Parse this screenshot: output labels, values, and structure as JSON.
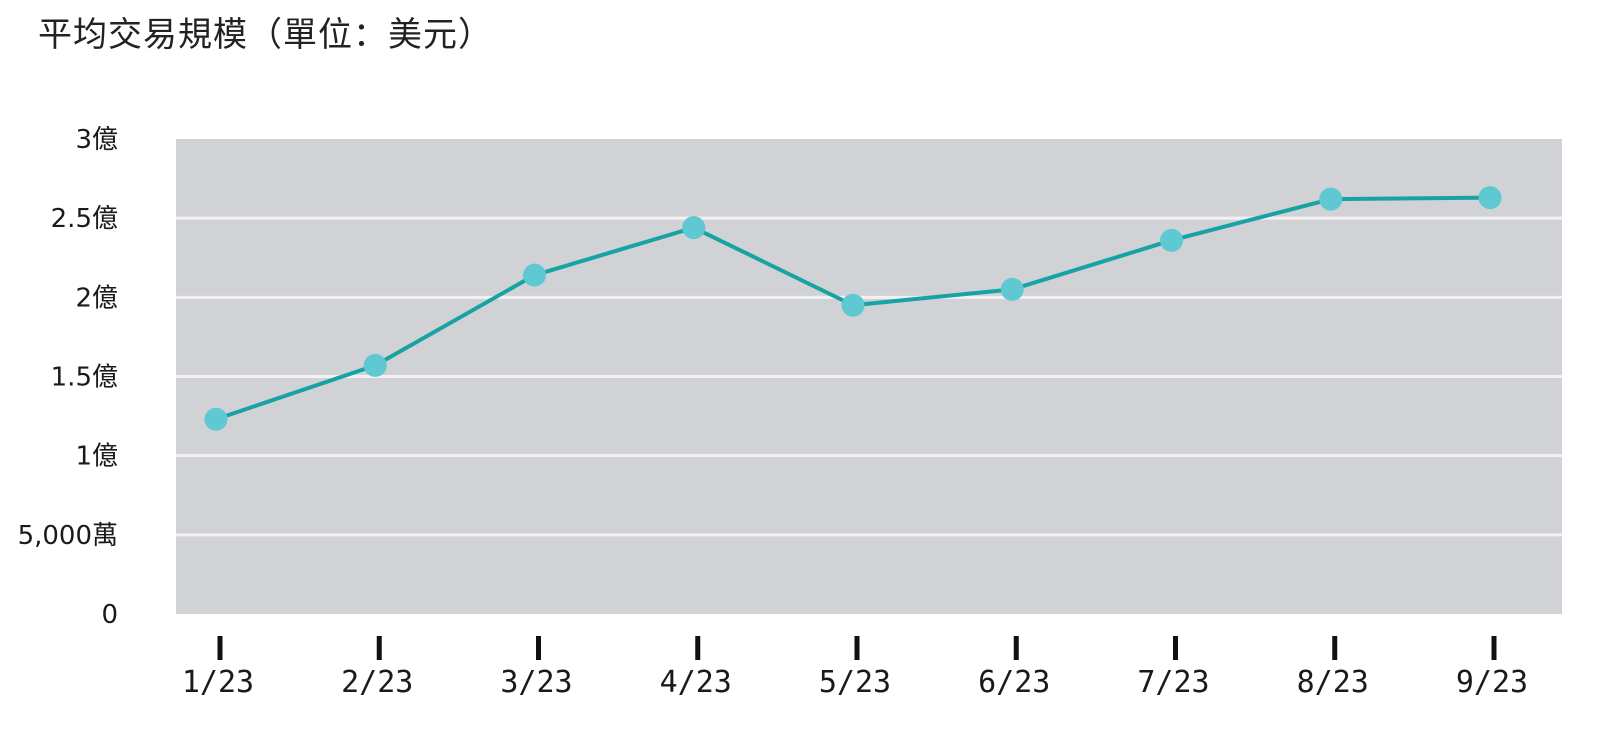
{
  "chart_data": {
    "type": "line",
    "title": "平均交易規模（單位：美元）",
    "xlabel": "",
    "ylabel": "",
    "categories": [
      "1/23",
      "2/23",
      "3/23",
      "4/23",
      "5/23",
      "6/23",
      "7/23",
      "8/23",
      "9/23"
    ],
    "series": [
      {
        "values": [
          123000000,
          157000000,
          214000000,
          244000000,
          195000000,
          205000000,
          236000000,
          262000000,
          263000000
        ]
      }
    ],
    "ylim": [
      0,
      300000000
    ],
    "yticks": [
      {
        "value": 0,
        "label": "0"
      },
      {
        "value": 50000000,
        "label": "5,000萬"
      },
      {
        "value": 100000000,
        "label": "1億"
      },
      {
        "value": 150000000,
        "label": "1.5億"
      },
      {
        "value": 200000000,
        "label": "2億"
      },
      {
        "value": 250000000,
        "label": "2.5億"
      },
      {
        "value": 300000000,
        "label": "3億"
      }
    ],
    "grid": true,
    "legend": "none",
    "colors": {
      "plot_background": "#d1d2d6",
      "gridline": "#f2f2f2",
      "line": "#17a3a3",
      "marker": "#5ec8d3",
      "tick_mark": "#111111"
    }
  }
}
